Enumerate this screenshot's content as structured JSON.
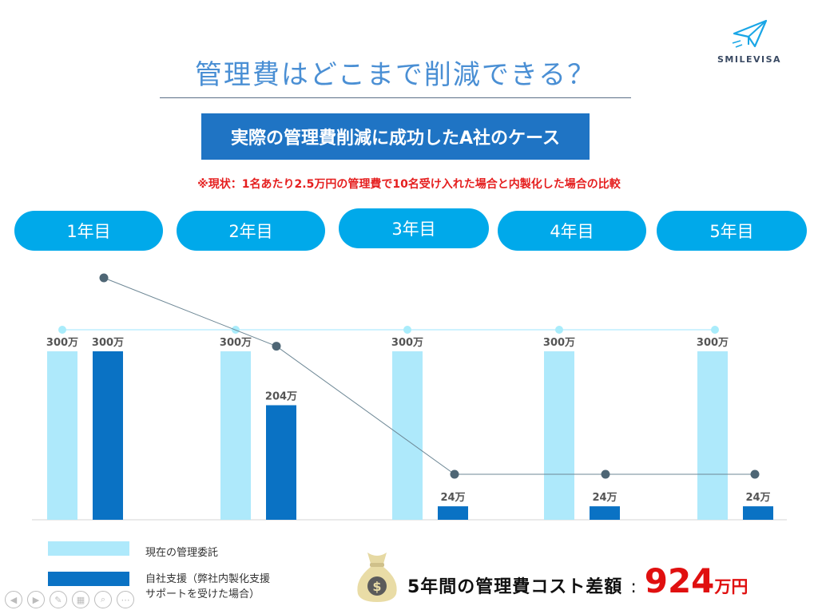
{
  "title": "管理費はどこまで削減できる？",
  "logo_text": "SMILEVISA",
  "banner": "実際の管理費削減に成功したA社のケース",
  "note": "※現状：1名あたり2.5万円の管理費で10名受け入れた場合と内製化した場合の比較",
  "summary": {
    "label": "5年間の管理費コスト差額",
    "colon": ":",
    "value": "924",
    "unit": "万円"
  },
  "legend": {
    "current": "現在の管理委託",
    "inhouse_line1": "自社支援（弊社内製化支援",
    "inhouse_line2": "サポートを受けた場合）"
  },
  "colors": {
    "current": "#aee9fb",
    "inhouse": "#0a72c4",
    "pill": "#00a9ea",
    "banner": "#1f74c4",
    "highlight": "#e01010"
  },
  "chart_data": {
    "type": "bar",
    "categories": [
      "1年目",
      "2年目",
      "3年目",
      "4年目",
      "5年目"
    ],
    "series": [
      {
        "name": "現在の管理委託",
        "values": [
          300,
          300,
          300,
          300,
          300
        ],
        "labels": [
          "300万",
          "300万",
          "300万",
          "300万",
          "300万"
        ],
        "color": "#aee9fb"
      },
      {
        "name": "自社支援（弊社内製化支援サポートを受けた場合）",
        "values": [
          300,
          204,
          24,
          24,
          24
        ],
        "labels": [
          "300万",
          "204万",
          "24万",
          "24万",
          "24万"
        ],
        "color": "#0a72c4"
      }
    ],
    "ylim": [
      0,
      300
    ]
  },
  "nav_icons": [
    "prev-icon",
    "next-icon",
    "pen-icon",
    "slides-icon",
    "zoom-icon",
    "more-icon"
  ]
}
